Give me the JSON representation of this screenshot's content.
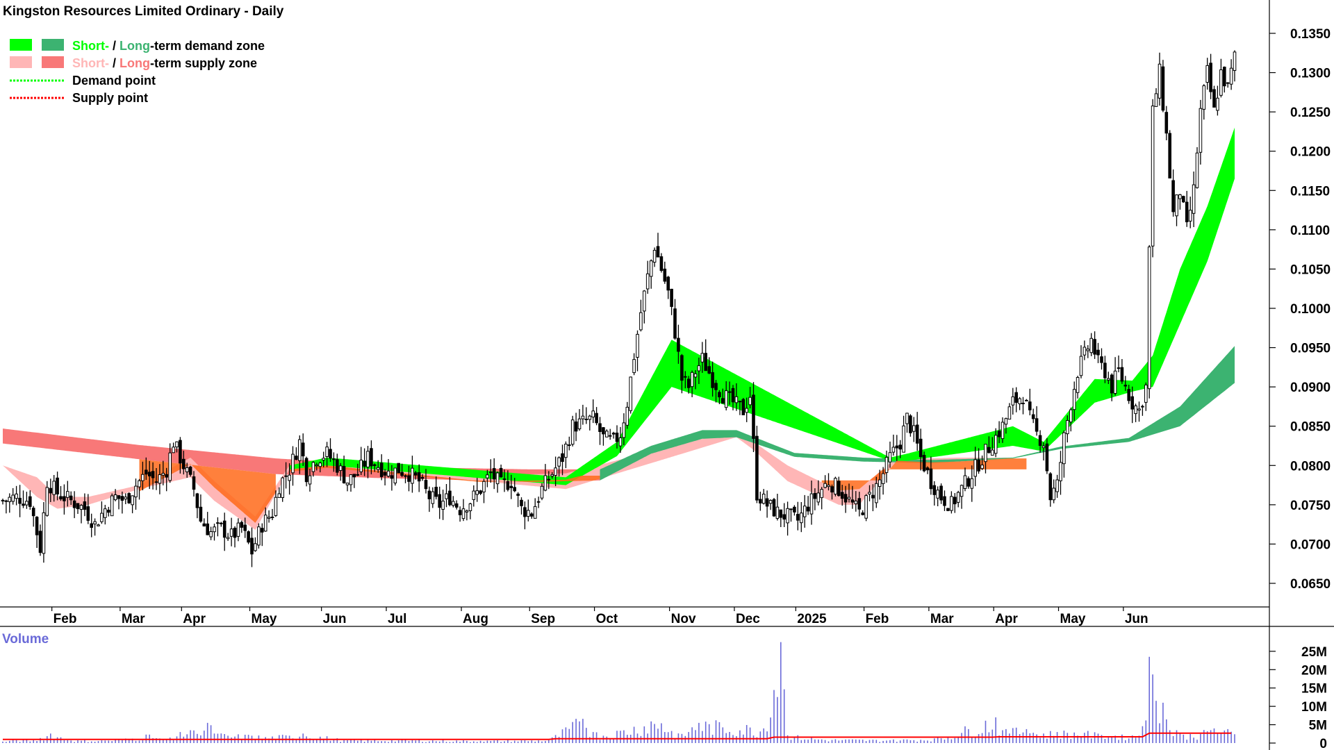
{
  "chart_data": [
    {
      "type": "candlestick",
      "title": "Kingston Resources Limited Ordinary - Daily",
      "legend": {
        "placement": "top-left",
        "entries": [
          {
            "swatch_colors": [
              "#00ff00",
              "#3cb371"
            ],
            "parts": [
              {
                "text": "Short-",
                "color": "#00ff00"
              },
              {
                "text": " / ",
                "color": "#000000"
              },
              {
                "text": "Long",
                "color": "#3cb371"
              },
              {
                "text": "-term demand zone",
                "color": "#000000"
              }
            ]
          },
          {
            "swatch_colors": [
              "#ffb6b6",
              "#f87878"
            ],
            "parts": [
              {
                "text": "Short-",
                "color": "#ffb6b6"
              },
              {
                "text": " / ",
                "color": "#000000"
              },
              {
                "text": "Long",
                "color": "#f87878"
              },
              {
                "text": "-term supply zone",
                "color": "#000000"
              }
            ]
          },
          {
            "line_color": "#00ff00",
            "parts": [
              {
                "text": "Demand point",
                "color": "#000000"
              }
            ]
          },
          {
            "line_color": "#ff0000",
            "parts": [
              {
                "text": "Supply point",
                "color": "#000000"
              }
            ]
          }
        ]
      },
      "colors": {
        "candle": "#000000",
        "short_demand": "#00ff00",
        "long_demand": "#3cb371",
        "short_supply": "#ffb6b6",
        "long_supply": "#f87878",
        "overlap": "#ff6a1a"
      },
      "y_axis": {
        "position": "right",
        "range": [
          0.0625,
          0.1375
        ],
        "ticks": [
          "0.0650",
          "0.0700",
          "0.0750",
          "0.0800",
          "0.0850",
          "0.0900",
          "0.0950",
          "0.1000",
          "0.1050",
          "0.1100",
          "0.1150",
          "0.1200",
          "0.1250",
          "0.1300",
          "0.1350"
        ]
      },
      "x_axis": {
        "labels": [
          "Feb",
          "Mar",
          "Apr",
          "May",
          "Jun",
          "Jul",
          "Aug",
          "Sep",
          "Oct",
          "Nov",
          "Dec",
          "2025",
          "Feb",
          "Mar",
          "Apr",
          "May",
          "Jun"
        ],
        "label_index": [
          15,
          35,
          53,
          73,
          94,
          113,
          135,
          155,
          174,
          196,
          215,
          233,
          253,
          272,
          291,
          310,
          329
        ]
      },
      "close_points": [
        [
          0,
          0.0755
        ],
        [
          4,
          0.076
        ],
        [
          8,
          0.0755
        ],
        [
          11,
          0.0695
        ],
        [
          13,
          0.078
        ],
        [
          16,
          0.0765
        ],
        [
          20,
          0.0755
        ],
        [
          24,
          0.0745
        ],
        [
          27,
          0.0725
        ],
        [
          30,
          0.0745
        ],
        [
          33,
          0.076
        ],
        [
          36,
          0.0755
        ],
        [
          39,
          0.0775
        ],
        [
          42,
          0.079
        ],
        [
          45,
          0.078
        ],
        [
          48,
          0.0795
        ],
        [
          50,
          0.083
        ],
        [
          53,
          0.08
        ],
        [
          56,
          0.077
        ],
        [
          58,
          0.073
        ],
        [
          61,
          0.0715
        ],
        [
          64,
          0.072
        ],
        [
          67,
          0.071
        ],
        [
          70,
          0.072
        ],
        [
          73,
          0.069
        ],
        [
          76,
          0.0725
        ],
        [
          79,
          0.074
        ],
        [
          81,
          0.0775
        ],
        [
          84,
          0.0795
        ],
        [
          87,
          0.083
        ],
        [
          89,
          0.079
        ],
        [
          92,
          0.081
        ],
        [
          95,
          0.0815
        ],
        [
          98,
          0.08
        ],
        [
          101,
          0.078
        ],
        [
          104,
          0.079
        ],
        [
          107,
          0.081
        ],
        [
          110,
          0.08
        ],
        [
          113,
          0.079
        ],
        [
          116,
          0.0795
        ],
        [
          119,
          0.079
        ],
        [
          122,
          0.078
        ],
        [
          125,
          0.076
        ],
        [
          128,
          0.075
        ],
        [
          131,
          0.076
        ],
        [
          134,
          0.0745
        ],
        [
          137,
          0.0755
        ],
        [
          140,
          0.077
        ],
        [
          143,
          0.079
        ],
        [
          146,
          0.0775
        ],
        [
          149,
          0.078
        ],
        [
          152,
          0.0745
        ],
        [
          155,
          0.074
        ],
        [
          158,
          0.077
        ],
        [
          161,
          0.079
        ],
        [
          164,
          0.081
        ],
        [
          167,
          0.085
        ],
        [
          170,
          0.0855
        ],
        [
          173,
          0.086
        ],
        [
          176,
          0.0835
        ],
        [
          179,
          0.083
        ],
        [
          181,
          0.084
        ],
        [
          183,
          0.088
        ],
        [
          185,
          0.094
        ],
        [
          187,
          0.0995
        ],
        [
          189,
          0.104
        ],
        [
          191,
          0.108
        ],
        [
          193,
          0.105
        ],
        [
          195,
          0.102
        ],
        [
          197,
          0.097
        ],
        [
          199,
          0.091
        ],
        [
          201,
          0.09
        ],
        [
          203,
          0.092
        ],
        [
          205,
          0.0935
        ],
        [
          208,
          0.091
        ],
        [
          211,
          0.089
        ],
        [
          214,
          0.088
        ],
        [
          217,
          0.087
        ],
        [
          219,
          0.089
        ],
        [
          221,
          0.0765
        ],
        [
          224,
          0.075
        ],
        [
          227,
          0.074
        ],
        [
          230,
          0.0735
        ],
        [
          233,
          0.073
        ],
        [
          236,
          0.075
        ],
        [
          239,
          0.0765
        ],
        [
          242,
          0.078
        ],
        [
          245,
          0.077
        ],
        [
          248,
          0.0755
        ],
        [
          251,
          0.074
        ],
        [
          254,
          0.076
        ],
        [
          257,
          0.078
        ],
        [
          260,
          0.081
        ],
        [
          263,
          0.083
        ],
        [
          265,
          0.086
        ],
        [
          267,
          0.084
        ],
        [
          269,
          0.081
        ],
        [
          272,
          0.078
        ],
        [
          275,
          0.076
        ],
        [
          278,
          0.075
        ],
        [
          281,
          0.077
        ],
        [
          284,
          0.079
        ],
        [
          287,
          0.081
        ],
        [
          290,
          0.083
        ],
        [
          293,
          0.085
        ],
        [
          296,
          0.088
        ],
        [
          299,
          0.089
        ],
        [
          301,
          0.086
        ],
        [
          303,
          0.084
        ],
        [
          305,
          0.083
        ],
        [
          307,
          0.076
        ],
        [
          309,
          0.0775
        ],
        [
          311,
          0.0835
        ],
        [
          313,
          0.088
        ],
        [
          315,
          0.092
        ],
        [
          317,
          0.094
        ],
        [
          319,
          0.096
        ],
        [
          321,
          0.093
        ],
        [
          323,
          0.092
        ],
        [
          325,
          0.09
        ],
        [
          327,
          0.092
        ],
        [
          329,
          0.09
        ],
        [
          331,
          0.088
        ],
        [
          333,
          0.087
        ],
        [
          335,
          0.09
        ],
        [
          337,
          0.125
        ],
        [
          339,
          0.13
        ],
        [
          341,
          0.122
        ],
        [
          343,
          0.112
        ],
        [
          345,
          0.115
        ],
        [
          347,
          0.11
        ],
        [
          349,
          0.115
        ],
        [
          351,
          0.125
        ],
        [
          353,
          0.13
        ],
        [
          355,
          0.125
        ],
        [
          357,
          0.13
        ],
        [
          359,
          0.128
        ],
        [
          361,
          0.132
        ]
      ],
      "zones": {
        "supply_long": [
          [
            0,
            0.0847,
            0.0828
          ],
          [
            40,
            0.0826,
            0.0808
          ],
          [
            80,
            0.0809,
            0.0789
          ],
          [
            110,
            0.0801,
            0.0784
          ],
          [
            130,
            0.0797,
            0.0782
          ],
          [
            155,
            0.0795,
            0.0779
          ],
          [
            175,
            0.0795,
            0.0781
          ]
        ],
        "supply_short": [
          [
            0,
            0.08,
            0.08
          ],
          [
            10,
            0.0785,
            0.076
          ],
          [
            16,
            0.076,
            0.0745
          ],
          [
            25,
            0.076,
            0.075
          ],
          [
            40,
            0.0775,
            0.077
          ],
          [
            55,
            0.081,
            0.0785
          ],
          [
            62,
            0.078,
            0.0755
          ],
          [
            74,
            0.0735,
            0.0718
          ],
          [
            84,
            0.08,
            0.0795
          ],
          [
            95,
            0.0805,
            0.08
          ],
          [
            140,
            0.0787,
            0.078
          ],
          [
            165,
            0.079,
            0.077
          ],
          [
            215,
            0.0845,
            0.0836
          ],
          [
            220,
            0.083,
            0.082
          ],
          [
            230,
            0.08,
            0.078
          ],
          [
            245,
            0.0768,
            0.075
          ],
          [
            251,
            0.077,
            0.075
          ],
          [
            262,
            0.081,
            0.0806
          ],
          [
            272,
            0.0809,
            0.0804
          ],
          [
            280,
            0.081,
            0.0805
          ],
          [
            295,
            0.081,
            0.0809
          ]
        ],
        "demand_short": [
          [
            84,
            0.08,
            0.0795
          ],
          [
            95,
            0.081,
            0.08
          ],
          [
            165,
            0.0785,
            0.0775
          ],
          [
            180,
            0.083,
            0.0812
          ],
          [
            196,
            0.096,
            0.09
          ],
          [
            260,
            0.081,
            0.0806
          ],
          [
            265,
            0.0815,
            0.0806
          ],
          [
            296,
            0.085,
            0.0825
          ],
          [
            305,
            0.083,
            0.0818
          ],
          [
            320,
            0.091,
            0.088
          ],
          [
            331,
            0.0908,
            0.0894
          ],
          [
            337,
            0.094,
            0.09
          ],
          [
            345,
            0.105,
            0.098
          ],
          [
            353,
            0.113,
            0.106
          ],
          [
            361,
            0.123,
            0.1165
          ]
        ],
        "demand_long": [
          [
            175,
            0.0795,
            0.0781
          ],
          [
            190,
            0.0825,
            0.0815
          ],
          [
            205,
            0.0845,
            0.0834
          ],
          [
            215,
            0.0845,
            0.0836
          ],
          [
            232,
            0.0816,
            0.0811
          ],
          [
            252,
            0.081,
            0.0805
          ],
          [
            272,
            0.0807,
            0.0803
          ],
          [
            296,
            0.081,
            0.0809
          ],
          [
            310,
            0.0824,
            0.0821
          ],
          [
            330,
            0.0835,
            0.083
          ],
          [
            345,
            0.0875,
            0.085
          ],
          [
            361,
            0.0952,
            0.0905
          ]
        ]
      }
    },
    {
      "type": "bar",
      "title": "Volume",
      "y_axis": {
        "position": "right",
        "range": [
          0,
          28000000
        ],
        "ticks": [
          "0",
          "5M",
          "10M",
          "15M",
          "20M",
          "25M"
        ]
      },
      "values_millions": [
        [
          0,
          0.4
        ],
        [
          4,
          0.8
        ],
        [
          9,
          0.8
        ],
        [
          14,
          2.6
        ],
        [
          20,
          0.7
        ],
        [
          30,
          0.7
        ],
        [
          38,
          1.2
        ],
        [
          43,
          2.3
        ],
        [
          47,
          0.9
        ],
        [
          52,
          3.0
        ],
        [
          55,
          3.5
        ],
        [
          57,
          2.5
        ],
        [
          60,
          5.5
        ],
        [
          62,
          2.6
        ],
        [
          66,
          2.0
        ],
        [
          73,
          2.0
        ],
        [
          77,
          1.6
        ],
        [
          84,
          2.0
        ],
        [
          88,
          2.6
        ],
        [
          100,
          0.8
        ],
        [
          120,
          0.8
        ],
        [
          140,
          0.6
        ],
        [
          160,
          0.8
        ],
        [
          170,
          6.6
        ],
        [
          173,
          3.0
        ],
        [
          176,
          2.0
        ],
        [
          190,
          5.9
        ],
        [
          193,
          5.4
        ],
        [
          196,
          3.3
        ],
        [
          199,
          2.5
        ],
        [
          204,
          5.5
        ],
        [
          223,
          4.0
        ],
        [
          228,
          27.5
        ],
        [
          230,
          2.1
        ],
        [
          240,
          1.0
        ],
        [
          260,
          0.8
        ],
        [
          275,
          1.3
        ],
        [
          291,
          7.0
        ],
        [
          293,
          3.5
        ],
        [
          295,
          2.6
        ],
        [
          297,
          4.2
        ],
        [
          300,
          3.8
        ],
        [
          305,
          2.6
        ],
        [
          309,
          3.0
        ],
        [
          317,
          2.8
        ],
        [
          322,
          2.2
        ],
        [
          326,
          2.0
        ],
        [
          328,
          2.3
        ],
        [
          333,
          2.0
        ],
        [
          336,
          23.5
        ],
        [
          338,
          11.5
        ],
        [
          340,
          11.0
        ],
        [
          342,
          3.5
        ],
        [
          344,
          3.5
        ],
        [
          346,
          2.3
        ],
        [
          351,
          2.5
        ],
        [
          355,
          4.0
        ],
        [
          357,
          2.6
        ],
        [
          359,
          3.8
        ],
        [
          361,
          2.4
        ]
      ],
      "moving_average_color": "#ff0000",
      "bar_color": "#6a6ad8"
    }
  ]
}
